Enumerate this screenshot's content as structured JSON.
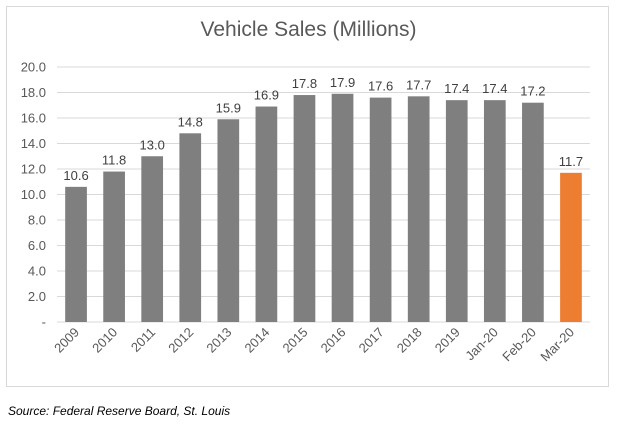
{
  "chart_data": {
    "type": "bar",
    "title": "Vehicle Sales (Millions)",
    "xlabel": "",
    "ylabel": "",
    "ylim": [
      0,
      20
    ],
    "y_ticks": [
      "-",
      "2.0",
      "4.0",
      "6.0",
      "8.0",
      "10.0",
      "12.0",
      "14.0",
      "16.0",
      "18.0",
      "20.0"
    ],
    "grid": true,
    "categories": [
      "2009",
      "2010",
      "2011",
      "2012",
      "2013",
      "2014",
      "2015",
      "2016",
      "2017",
      "2018",
      "2019",
      "Jan-20",
      "Feb-20",
      "Mar-20"
    ],
    "values": [
      10.6,
      11.8,
      13.0,
      14.8,
      15.9,
      16.9,
      17.8,
      17.9,
      17.6,
      17.7,
      17.4,
      17.4,
      17.2,
      11.7
    ],
    "data_labels": [
      "10.6",
      "11.8",
      "13.0",
      "14.8",
      "15.9",
      "16.9",
      "17.8",
      "17.9",
      "17.6",
      "17.7",
      "17.4",
      "17.4",
      "17.2",
      "11.7"
    ],
    "bar_colors": [
      "#7f7f7f",
      "#7f7f7f",
      "#7f7f7f",
      "#7f7f7f",
      "#7f7f7f",
      "#7f7f7f",
      "#7f7f7f",
      "#7f7f7f",
      "#7f7f7f",
      "#7f7f7f",
      "#7f7f7f",
      "#7f7f7f",
      "#7f7f7f",
      "#ed7d31"
    ],
    "gridline_color": "#d9d9d9"
  },
  "source": "Source: Federal Reserve Board, St. Louis"
}
